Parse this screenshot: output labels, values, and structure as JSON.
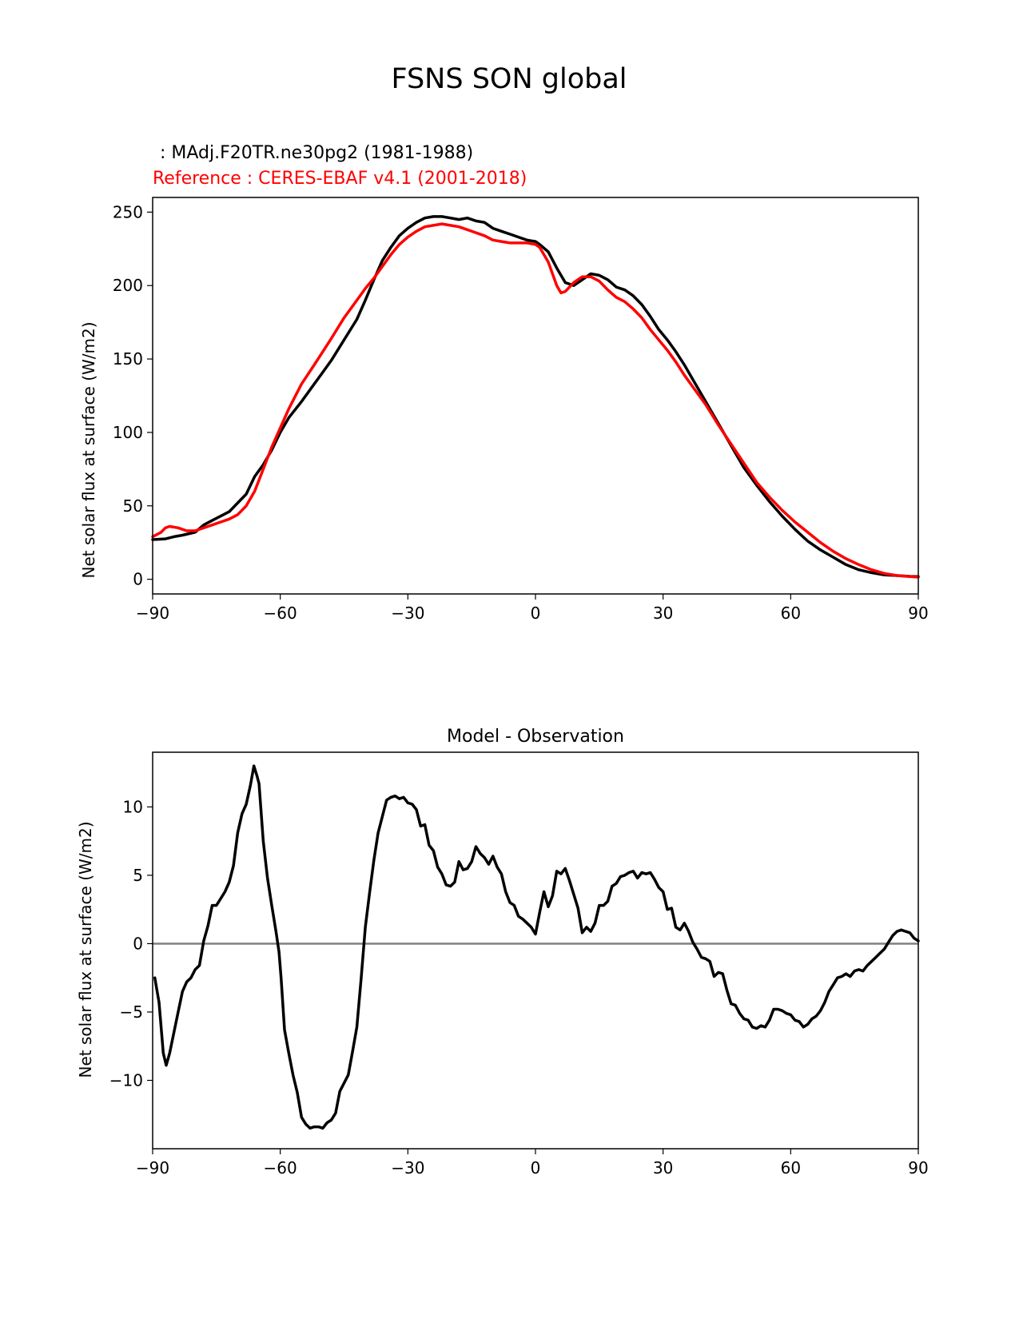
{
  "title": "FSNS SON global",
  "chart_data": [
    {
      "type": "line",
      "test_label": " : MAdj.F20TR.ne30pg2 (1981-1988)",
      "ref_label": "Reference : CERES-EBAF v4.1 (2001-2018)",
      "xlabel": "",
      "ylabel": "Net solar flux at surface (W/m2)",
      "xlim": [
        -90,
        90
      ],
      "ylim": [
        -10,
        260
      ],
      "xticks": [
        -90,
        -60,
        -30,
        0,
        30,
        60,
        90
      ],
      "xtick_labels": [
        "−90",
        "−60",
        "−30",
        "0",
        "30",
        "60",
        "90"
      ],
      "yticks": [
        0,
        50,
        100,
        150,
        200,
        250
      ],
      "ytick_labels": [
        "0",
        "50",
        "100",
        "150",
        "200",
        "250"
      ],
      "colors": {
        "test": "#000000",
        "reference": "#ff0000"
      },
      "series": [
        {
          "name": "MAdj.F20TR.ne30pg2 (1981-1988)",
          "color": "#000000",
          "x": [
            -90,
            -87,
            -85,
            -83,
            -80,
            -78,
            -76,
            -74,
            -72,
            -70,
            -68,
            -66,
            -64,
            -62,
            -60,
            -58,
            -55,
            -52,
            -50,
            -48,
            -45,
            -42,
            -40,
            -38,
            -36,
            -34,
            -32,
            -30,
            -28,
            -26,
            -24,
            -22,
            -20,
            -18,
            -16,
            -14,
            -12,
            -10,
            -8,
            -6,
            -4,
            -2,
            0,
            1,
            3,
            5,
            7,
            9,
            11,
            13,
            15,
            17,
            19,
            21,
            23,
            25,
            27,
            29,
            31,
            33,
            35,
            37,
            40,
            43,
            46,
            49,
            52,
            55,
            58,
            61,
            64,
            67,
            70,
            73,
            76,
            79,
            82,
            85,
            88,
            90
          ],
          "values": [
            27,
            27.5,
            29,
            30,
            32,
            37,
            40,
            43,
            46,
            52,
            58,
            70,
            78,
            88,
            100,
            110,
            121,
            133,
            141,
            149,
            163,
            177,
            190,
            204,
            217,
            226,
            234,
            239,
            243,
            246,
            247,
            247,
            246,
            245,
            246,
            244,
            243,
            239,
            237,
            235,
            233,
            231,
            230,
            228,
            223,
            212,
            202,
            200,
            204,
            208,
            207,
            204,
            199,
            197,
            193,
            187,
            179,
            170,
            163,
            155,
            146,
            136,
            121,
            106,
            91,
            76,
            64,
            53,
            43,
            34,
            26,
            20,
            15,
            10,
            6.5,
            4.5,
            3,
            2.5,
            2,
            1.8
          ]
        },
        {
          "name": "CERES-EBAF v4.1 (2001-2018)",
          "color": "#ff0000",
          "x": [
            -90,
            -88,
            -87,
            -86,
            -84,
            -82,
            -80,
            -78,
            -76,
            -74,
            -72,
            -70,
            -68,
            -66,
            -64,
            -62,
            -60,
            -58,
            -55,
            -52,
            -50,
            -48,
            -45,
            -42,
            -40,
            -38,
            -36,
            -34,
            -32,
            -30,
            -28,
            -26,
            -24,
            -22,
            -20,
            -18,
            -16,
            -14,
            -12,
            -10,
            -8,
            -6,
            -4,
            -2,
            0,
            1,
            3,
            5,
            6,
            7,
            9,
            11,
            13,
            15,
            17,
            19,
            21,
            23,
            25,
            27,
            29,
            31,
            33,
            35,
            37,
            40,
            43,
            46,
            49,
            52,
            55,
            58,
            61,
            64,
            67,
            70,
            73,
            76,
            79,
            82,
            85,
            88,
            90
          ],
          "values": [
            29,
            32,
            35,
            36,
            35,
            33,
            33,
            35,
            37,
            39,
            41,
            44,
            50,
            60,
            75,
            90,
            103,
            116,
            133,
            146,
            155,
            164,
            178,
            190,
            198,
            205,
            213,
            221,
            228,
            233,
            237,
            240,
            241,
            242,
            241,
            240,
            238,
            236,
            234,
            231,
            230,
            229,
            229,
            229,
            228,
            226,
            216,
            200,
            195,
            196,
            202,
            206,
            206,
            203,
            197,
            192,
            189,
            184,
            178,
            170,
            163,
            156,
            148,
            139,
            131,
            119,
            105,
            92,
            79,
            66,
            56,
            47,
            39,
            32,
            25,
            19,
            14,
            10,
            6.5,
            4,
            2.5,
            1.8,
            1.5
          ]
        }
      ]
    },
    {
      "type": "line",
      "title": "Model - Observation",
      "xlabel": "",
      "ylabel": "Net solar flux at surface (W/m2)",
      "xlim": [
        -90,
        90
      ],
      "ylim": [
        -15,
        14
      ],
      "xticks": [
        -90,
        -60,
        -30,
        0,
        30,
        60,
        90
      ],
      "xtick_labels": [
        "−90",
        "−60",
        "−30",
        "0",
        "30",
        "60",
        "90"
      ],
      "yticks": [
        -10,
        -5,
        0,
        5,
        10
      ],
      "ytick_labels": [
        "−10",
        "−5",
        "0",
        "5",
        "10"
      ],
      "colors": {
        "diff": "#000000",
        "zero_line": "#808080"
      },
      "series": [
        {
          "name": "",
          "color": "#000000",
          "x": [
            -89.5,
            -88.5,
            -87.5,
            -86.8,
            -86,
            -85,
            -84,
            -83,
            -82,
            -81,
            -80,
            -79,
            -78,
            -77,
            -76,
            -75,
            -74,
            -73,
            -72,
            -71,
            -70,
            -69,
            -68,
            -67,
            -66.2,
            -65.5,
            -65,
            -64,
            -63,
            -62,
            -61,
            -60.3,
            -59.8,
            -59,
            -58,
            -57,
            -56,
            -55,
            -54,
            -53,
            -52,
            -51,
            -50,
            -49,
            -48,
            -47,
            -46,
            -45,
            -44,
            -43,
            -42,
            -41,
            -40,
            -39,
            -38,
            -37,
            -36,
            -35,
            -34,
            -33,
            -32,
            -31,
            -30,
            -29,
            -28,
            -27,
            -26,
            -25,
            -24,
            -23,
            -22,
            -21,
            -20,
            -19,
            -18,
            -17,
            -16,
            -15,
            -14,
            -13,
            -12,
            -11,
            -10,
            -9,
            -8,
            -7,
            -6,
            -5,
            -4,
            -3,
            -2,
            -1,
            0,
            1,
            2,
            3,
            4,
            5,
            6,
            7,
            8,
            9,
            10,
            11,
            12,
            13,
            14,
            15,
            16,
            17,
            18,
            19,
            20,
            21,
            22,
            23,
            24,
            25,
            26,
            27,
            28,
            29,
            30,
            31,
            32,
            33,
            34,
            35,
            36,
            37,
            38,
            39,
            40,
            41,
            42,
            43,
            44,
            45,
            46,
            47,
            48,
            49,
            50,
            51,
            52,
            53,
            54,
            55,
            56,
            57,
            58,
            59,
            60,
            61,
            62,
            63,
            64,
            65,
            66,
            67,
            68,
            69,
            70,
            71,
            72,
            73,
            74,
            75,
            76,
            77,
            78,
            79,
            80,
            81,
            82,
            83,
            84,
            85,
            86,
            87,
            88,
            89,
            90
          ],
          "values": [
            -2.5,
            -4.3,
            -8,
            -8.9,
            -8,
            -6.5,
            -5,
            -3.5,
            -2.8,
            -2.5,
            -1.9,
            -1.6,
            0.2,
            1.3,
            2.8,
            2.8,
            3.3,
            3.8,
            4.5,
            5.7,
            8.1,
            9.5,
            10.2,
            11.6,
            13,
            12.3,
            11.7,
            7.5,
            4.8,
            2.8,
            0.9,
            -0.6,
            -2.5,
            -6.3,
            -8,
            -9.6,
            -10.9,
            -12.7,
            -13.2,
            -13.5,
            -13.4,
            -13.4,
            -13.5,
            -13.1,
            -12.9,
            -12.4,
            -10.8,
            -10.2,
            -9.6,
            -7.9,
            -6.1,
            -2.6,
            1.2,
            3.7,
            6.1,
            8.1,
            9.3,
            10.5,
            10.7,
            10.8,
            10.6,
            10.7,
            10.3,
            10.2,
            9.8,
            8.6,
            8.7,
            7.2,
            6.8,
            5.6,
            5.1,
            4.3,
            4.2,
            4.5,
            6.0,
            5.4,
            5.5,
            6.0,
            7.1,
            6.6,
            6.3,
            5.8,
            6.4,
            5.6,
            5.1,
            3.8,
            3.0,
            2.8,
            2.0,
            1.8,
            1.5,
            1.2,
            0.7,
            2.3,
            3.8,
            2.7,
            3.5,
            5.3,
            5.1,
            5.5,
            4.6,
            3.6,
            2.6,
            0.8,
            1.2,
            0.9,
            1.5,
            2.8,
            2.8,
            3.1,
            4.2,
            4.4,
            4.9,
            5.0,
            5.2,
            5.3,
            4.8,
            5.2,
            5.1,
            5.2,
            4.7,
            4.1,
            3.8,
            2.5,
            2.6,
            1.2,
            1.0,
            1.5,
            0.9,
            0.1,
            -0.4,
            -1.0,
            -1.1,
            -1.3,
            -2.4,
            -2.1,
            -2.2,
            -3.4,
            -4.4,
            -4.5,
            -5.1,
            -5.5,
            -5.6,
            -6.1,
            -6.2,
            -6.0,
            -6.1,
            -5.6,
            -4.8,
            -4.8,
            -4.9,
            -5.1,
            -5.2,
            -5.6,
            -5.7,
            -6.1,
            -5.9,
            -5.5,
            -5.3,
            -4.9,
            -4.3,
            -3.5,
            -3.0,
            -2.5,
            -2.4,
            -2.2,
            -2.4,
            -2.0,
            -1.9,
            -2.0,
            -1.6,
            -1.3,
            -1.0,
            -0.7,
            -0.4,
            0.1,
            0.6,
            0.9,
            1.0,
            0.9,
            0.8,
            0.4,
            0.2
          ]
        }
      ],
      "reference_line": 0
    }
  ]
}
